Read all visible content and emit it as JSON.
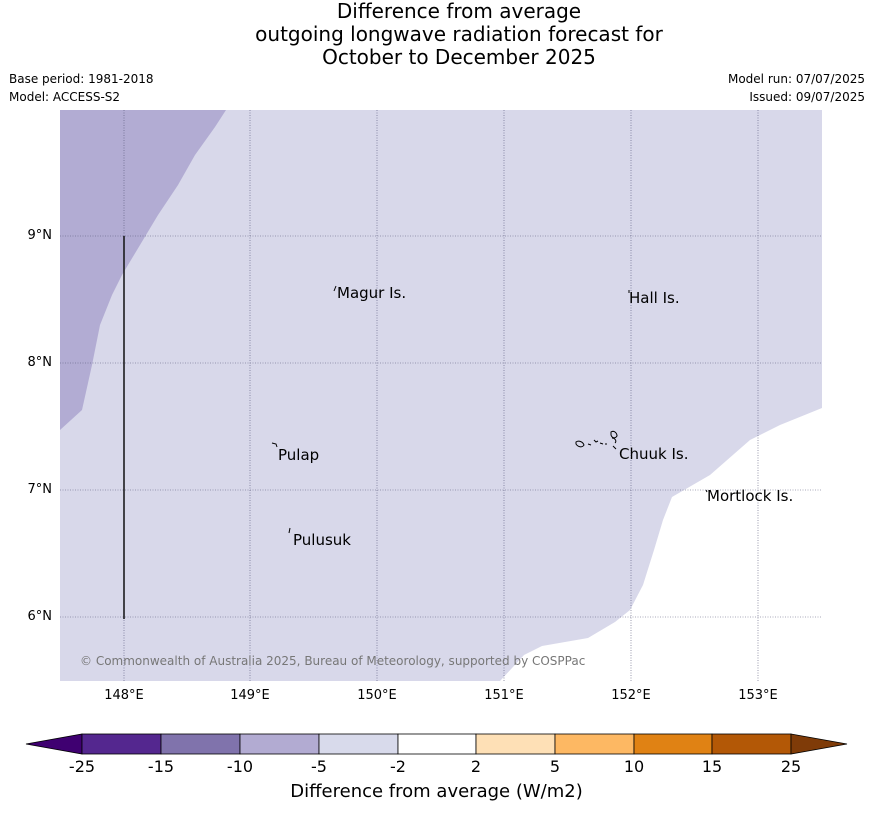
{
  "title": {
    "line1": "Difference from average",
    "line2": "outgoing longwave radiation forecast for",
    "line3": "October to December 2025"
  },
  "meta": {
    "base_period": "Base period: 1981-2018",
    "model": "Model: ACCESS-S2",
    "model_run": "Model run: 07/07/2025",
    "issued": "Issued: 09/07/2025"
  },
  "map": {
    "lon_range": [
      147.5,
      153.5
    ],
    "lat_range": [
      5.5,
      10.0
    ],
    "lat_ticks": [
      "9°N",
      "8°N",
      "7°N",
      "6°N"
    ],
    "lon_ticks": [
      "148°E",
      "149°E",
      "150°E",
      "151°E",
      "152°E",
      "153°E"
    ],
    "places": [
      {
        "name": "Magur Is."
      },
      {
        "name": "Hall Is."
      },
      {
        "name": "Pulap"
      },
      {
        "name": "Chuuk Is."
      },
      {
        "name": "Mortlock Is."
      },
      {
        "name": "Pulusuk"
      }
    ],
    "copyright": "© Commonwealth of Australia 2025, Bureau of Meteorology, supported by COSPPac",
    "colors": {
      "band_-10_-5": "#b2acd3",
      "band_-5_-2": "#d8d8ea",
      "band_-2_2": "#ffffff"
    }
  },
  "colorbar": {
    "label": "Difference from average (W/m2)",
    "ticks": [
      "-25",
      "-15",
      "-10",
      "-5",
      "-2",
      "2",
      "5",
      "10",
      "15",
      "25"
    ],
    "colors": [
      "#3f0071",
      "#54278f",
      "#8073ac",
      "#b2abd2",
      "#d8daeb",
      "#ffffff",
      "#fee0b6",
      "#fdb863",
      "#e08214",
      "#b35806",
      "#7f3b08"
    ]
  }
}
